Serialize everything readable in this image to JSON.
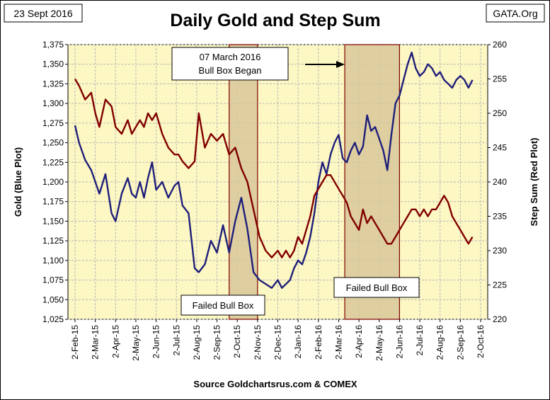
{
  "chart_data": {
    "type": "line",
    "title": "Daily Gold and Step Sum",
    "date_label": "23 Sept 2016",
    "brand_label": "GATA.Org",
    "source": "Source Goldchartsrus.com & COMEX",
    "ylabel_left": "Gold   (Blue Plot)",
    "ylabel_right": "Step Sum   (Red Plot)",
    "ylim_left": [
      1025,
      1375
    ],
    "ylim_right": [
      220,
      260
    ],
    "yticks_left": [
      "1,025",
      "1,050",
      "1,075",
      "1,100",
      "1,125",
      "1,150",
      "1,175",
      "1,200",
      "1,225",
      "1,250",
      "1,275",
      "1,300",
      "1,325",
      "1,350",
      "1,375"
    ],
    "yticks_right": [
      "220",
      "225",
      "230",
      "235",
      "240",
      "245",
      "250",
      "255",
      "260"
    ],
    "xticks": [
      "2-Feb-15",
      "2-Mar-15",
      "2-Apr-15",
      "2-May-15",
      "2-Jun-15",
      "2-Jul-15",
      "2-Aug-15",
      "2-Sep-15",
      "2-Oct-15",
      "2-Nov-15",
      "2-Dec-15",
      "2-Jan-16",
      "2-Feb-16",
      "2-Mar-16",
      "2-Apr-16",
      "2-May-16",
      "2-Jun-16",
      "2-Jul-16",
      "2-Aug-16",
      "2-Sep-16",
      "2-Oct-16"
    ],
    "grid": true,
    "background_color": "#fdf7c3",
    "series": [
      {
        "name": "Gold",
        "axis": "left",
        "color": "#1f1f7a",
        "x": [
          0,
          0.2,
          0.5,
          0.8,
          1,
          1.2,
          1.5,
          1.8,
          2,
          2.3,
          2.6,
          2.8,
          3,
          3.2,
          3.4,
          3.6,
          3.8,
          4,
          4.3,
          4.6,
          4.9,
          5.1,
          5.3,
          5.6,
          5.9,
          6.1,
          6.4,
          6.7,
          7,
          7.3,
          7.6,
          7.9,
          8.2,
          8.5,
          8.8,
          9.1,
          9.4,
          9.7,
          10,
          10.2,
          10.4,
          10.6,
          10.8,
          11,
          11.2,
          11.4,
          11.6,
          11.8,
          12,
          12.2,
          12.4,
          12.6,
          12.8,
          13,
          13.2,
          13.4,
          13.6,
          13.8,
          14,
          14.2,
          14.4,
          14.6,
          14.8,
          15,
          15.2,
          15.4,
          15.6,
          15.8,
          16,
          16.2,
          16.4,
          16.6,
          16.8,
          17,
          17.2,
          17.4,
          17.6,
          17.8,
          18,
          18.2,
          18.4,
          18.6,
          18.8,
          19,
          19.2,
          19.4,
          19.6
        ],
        "values": [
          1272,
          1250,
          1228,
          1215,
          1200,
          1185,
          1210,
          1160,
          1150,
          1185,
          1205,
          1185,
          1180,
          1200,
          1180,
          1205,
          1225,
          1190,
          1200,
          1180,
          1195,
          1200,
          1170,
          1160,
          1090,
          1085,
          1095,
          1125,
          1110,
          1145,
          1110,
          1150,
          1180,
          1140,
          1085,
          1075,
          1070,
          1065,
          1075,
          1065,
          1070,
          1075,
          1090,
          1100,
          1095,
          1110,
          1130,
          1160,
          1200,
          1225,
          1210,
          1235,
          1250,
          1260,
          1230,
          1225,
          1240,
          1250,
          1235,
          1245,
          1285,
          1265,
          1270,
          1255,
          1240,
          1215,
          1260,
          1300,
          1310,
          1330,
          1350,
          1365,
          1345,
          1335,
          1340,
          1350,
          1345,
          1335,
          1340,
          1330,
          1325,
          1320,
          1330,
          1335,
          1330,
          1320,
          1330
        ],
        "legend": "(Blue Plot)"
      },
      {
        "name": "Step Sum",
        "axis": "right",
        "color": "#800000",
        "x": [
          0,
          0.2,
          0.5,
          0.8,
          1,
          1.2,
          1.5,
          1.8,
          2,
          2.3,
          2.6,
          2.8,
          3,
          3.2,
          3.4,
          3.6,
          3.8,
          4,
          4.3,
          4.6,
          4.9,
          5.1,
          5.3,
          5.6,
          5.9,
          6.1,
          6.4,
          6.7,
          7,
          7.3,
          7.6,
          7.9,
          8.2,
          8.5,
          8.8,
          9.1,
          9.4,
          9.7,
          10,
          10.2,
          10.4,
          10.6,
          10.8,
          11,
          11.2,
          11.4,
          11.6,
          11.8,
          12,
          12.2,
          12.4,
          12.6,
          12.8,
          13,
          13.2,
          13.4,
          13.6,
          13.8,
          14,
          14.2,
          14.4,
          14.6,
          14.8,
          15,
          15.2,
          15.4,
          15.6,
          15.8,
          16,
          16.2,
          16.4,
          16.6,
          16.8,
          17,
          17.2,
          17.4,
          17.6,
          17.8,
          18,
          18.2,
          18.4,
          18.6,
          18.8,
          19,
          19.2,
          19.4,
          19.6
        ],
        "values": [
          255,
          254,
          252,
          253,
          250,
          248,
          252,
          251,
          248,
          247,
          249,
          247,
          248,
          249,
          248,
          250,
          249,
          250,
          247,
          245,
          244,
          244,
          243,
          242,
          243,
          250,
          245,
          247,
          246,
          247,
          244,
          245,
          242,
          240,
          236,
          232,
          230,
          229,
          230,
          229,
          230,
          229,
          230,
          232,
          231,
          233,
          235,
          238,
          239,
          240,
          241,
          241,
          240,
          239,
          238,
          237,
          235,
          234,
          233,
          236,
          234,
          235,
          234,
          233,
          232,
          231,
          231,
          232,
          233,
          234,
          235,
          236,
          236,
          235,
          236,
          235,
          236,
          236,
          237,
          238,
          237,
          235,
          234,
          233,
          232,
          231,
          232
        ]
      }
    ],
    "shaded_regions": [
      {
        "x_start": 7.6,
        "x_end": 9.0,
        "label": "Failed Bull Box"
      },
      {
        "x_start": 13.3,
        "x_end": 16.0,
        "label": "Failed Bull Box"
      }
    ],
    "annotation": {
      "line1": "07 March 2016",
      "line2": "Bull Box Began"
    }
  }
}
